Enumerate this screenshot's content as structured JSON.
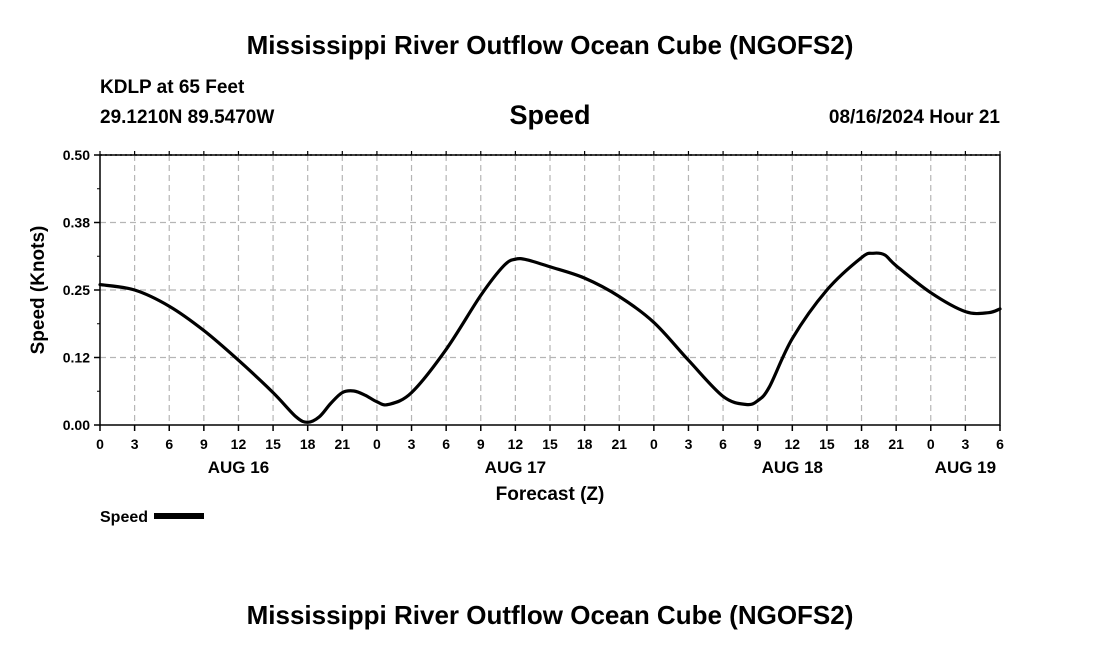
{
  "page": {
    "title": "Mississippi River Outflow Ocean Cube (NGOFS2)",
    "footer_title": "Mississippi River Outflow Ocean Cube (NGOFS2)"
  },
  "station": {
    "name_depth": "KDLP at 65 Feet",
    "coords": "29.1210N  89.5470W",
    "datetime": "08/16/2024 Hour 21"
  },
  "legend": {
    "label": "Speed"
  },
  "chart_data": {
    "type": "line",
    "title": "Speed",
    "xlabel": "Forecast (Z)",
    "ylabel": "Speed (Knots)",
    "ylim": [
      0,
      0.5
    ],
    "yticks": [
      0.0,
      0.125,
      0.25,
      0.375,
      0.5
    ],
    "ytick_labels": [
      "0.00",
      "0.12",
      "0.25",
      "0.38",
      "0.50"
    ],
    "xlim": [
      0,
      78
    ],
    "xticks": [
      0,
      3,
      6,
      9,
      12,
      15,
      18,
      21,
      24,
      27,
      30,
      33,
      36,
      39,
      42,
      45,
      48,
      51,
      54,
      57,
      60,
      63,
      66,
      69,
      72,
      75,
      78
    ],
    "xtick_labels": [
      "0",
      "3",
      "6",
      "9",
      "12",
      "15",
      "18",
      "21",
      "0",
      "3",
      "6",
      "9",
      "12",
      "15",
      "18",
      "21",
      "0",
      "3",
      "6",
      "9",
      "12",
      "15",
      "18",
      "21",
      "0",
      "3",
      "6"
    ],
    "date_labels": [
      {
        "x": 12,
        "label": "AUG 16"
      },
      {
        "x": 36,
        "label": "AUG 17"
      },
      {
        "x": 60,
        "label": "AUG 18"
      },
      {
        "x": 75,
        "label": "AUG 19"
      }
    ],
    "grid": true,
    "series": [
      {
        "name": "Speed",
        "x": [
          0,
          3,
          6,
          9,
          12,
          15,
          17,
          18,
          19,
          20,
          21,
          22,
          23,
          24,
          25,
          27,
          30,
          33,
          35,
          36,
          37,
          39,
          42,
          45,
          48,
          51,
          54,
          56,
          57,
          58,
          60,
          63,
          66,
          67,
          68,
          69,
          72,
          75,
          77,
          78
        ],
        "y": [
          0.26,
          0.25,
          0.22,
          0.175,
          0.12,
          0.06,
          0.015,
          0.005,
          0.015,
          0.04,
          0.06,
          0.063,
          0.055,
          0.043,
          0.038,
          0.06,
          0.14,
          0.24,
          0.295,
          0.307,
          0.306,
          0.293,
          0.272,
          0.238,
          0.19,
          0.12,
          0.053,
          0.038,
          0.045,
          0.07,
          0.16,
          0.25,
          0.31,
          0.318,
          0.315,
          0.295,
          0.245,
          0.21,
          0.208,
          0.215
        ]
      }
    ]
  }
}
